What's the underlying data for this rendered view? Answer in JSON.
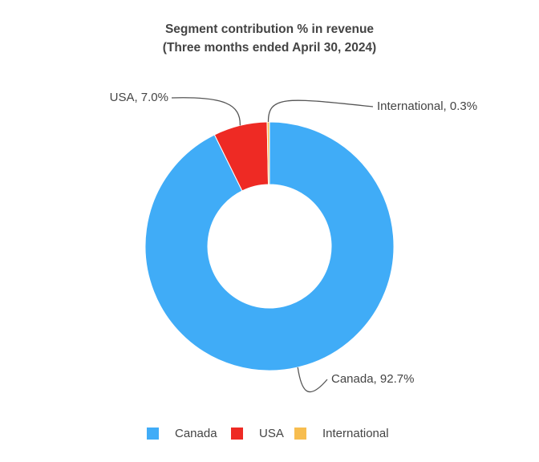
{
  "chart_data": {
    "type": "donut",
    "title": "Segment contribution % in revenue",
    "subtitle": "(Three months ended April 30, 2024)",
    "categories": [
      "Canada",
      "USA",
      "International"
    ],
    "values": [
      92.7,
      7.0,
      0.3
    ],
    "value_labels": [
      "Canada, 92.7%",
      "USA, 7.0%",
      "International, 0.3%"
    ],
    "colors": [
      "#40acf7",
      "#ee2a24",
      "#f7bd4f"
    ],
    "legend": "bottom"
  }
}
